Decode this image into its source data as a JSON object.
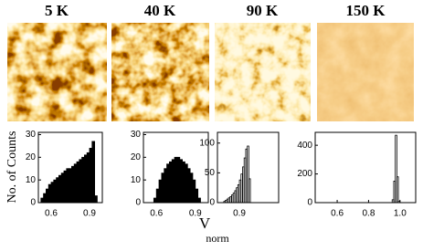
{
  "figure": {
    "ylabel": "No. of Counts",
    "xlabel": "V",
    "xlabel_subscript": "norm"
  },
  "chart_data": [
    {
      "type": "histogram",
      "title": "5 K",
      "color": "#000000",
      "filled": true,
      "bins": [
        0.52,
        0.54,
        0.56,
        0.58,
        0.6,
        0.62,
        0.64,
        0.66,
        0.68,
        0.7,
        0.72,
        0.74,
        0.76,
        0.78,
        0.8,
        0.82,
        0.84,
        0.86,
        0.88,
        0.9,
        0.92,
        0.94,
        0.96
      ],
      "values": [
        2,
        4,
        6,
        8,
        9,
        10,
        11,
        12,
        13,
        14,
        15,
        15,
        16,
        17,
        18,
        19,
        20,
        21,
        22,
        24,
        27,
        3
      ],
      "xlim": [
        0.5,
        1.0
      ],
      "xticks": [
        0.6,
        0.9
      ],
      "ylim": [
        0,
        31
      ],
      "yticks": [
        0,
        10,
        20,
        30
      ]
    },
    {
      "type": "histogram",
      "title": "40 K",
      "color": "#000000",
      "filled": true,
      "bins": [
        0.58,
        0.6,
        0.62,
        0.64,
        0.66,
        0.68,
        0.7,
        0.72,
        0.74,
        0.76,
        0.78,
        0.8,
        0.82,
        0.84,
        0.86,
        0.88,
        0.9,
        0.92,
        0.94
      ],
      "values": [
        2,
        6,
        10,
        13,
        15,
        17,
        18,
        19,
        20,
        20,
        19,
        18,
        17,
        15,
        13,
        10,
        6,
        2
      ],
      "xlim": [
        0.5,
        1.0
      ],
      "xticks": [
        0.6,
        0.9
      ],
      "ylim": [
        0,
        31
      ],
      "yticks": [
        0,
        10,
        20,
        30
      ]
    },
    {
      "type": "histogram",
      "title": "90 K",
      "color": "#000000",
      "filled": false,
      "bins": [
        0.8,
        0.81,
        0.82,
        0.83,
        0.84,
        0.85,
        0.86,
        0.87,
        0.88,
        0.89,
        0.9,
        0.91,
        0.92,
        0.93,
        0.94,
        0.95,
        0.96,
        0.97
      ],
      "values": [
        2,
        4,
        6,
        8,
        10,
        13,
        16,
        20,
        25,
        30,
        38,
        48,
        60,
        75,
        90,
        95,
        40
      ],
      "xlim": [
        0.76,
        1.15
      ],
      "xticks": [
        0.9
      ],
      "ylim": [
        0,
        118
      ],
      "yticks": [
        0,
        50,
        100
      ]
    },
    {
      "type": "histogram",
      "title": "150 K",
      "color": "#000000",
      "filled": false,
      "bins": [
        0.95,
        0.96,
        0.97,
        0.98,
        0.99,
        1.0
      ],
      "values": [
        20,
        150,
        470,
        180,
        10
      ],
      "xlim": [
        0.46,
        1.1
      ],
      "xticks": [
        0.6,
        0.8,
        {
          "value": 1.0,
          "label": "1.0"
        }
      ],
      "ylim": [
        0,
        490
      ],
      "yticks": [
        0,
        200,
        400
      ]
    }
  ]
}
